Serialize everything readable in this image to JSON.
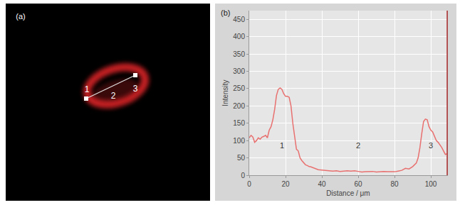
{
  "panel_a": {
    "label": "(a)",
    "markers": [
      "1",
      "2",
      "3"
    ],
    "color": "#e8262a"
  },
  "chart_data": {
    "type": "line",
    "panel_label": "(b)",
    "x_label": "Distance / μm",
    "y_label": "Intensity",
    "x": [
      0,
      1,
      2,
      3,
      4,
      5,
      6,
      7,
      8,
      9,
      10,
      11,
      12,
      13,
      14,
      15,
      16,
      17,
      18,
      19,
      20,
      21,
      22,
      23,
      24,
      25,
      26,
      27,
      28,
      29,
      30,
      31,
      32,
      33,
      34,
      35,
      36,
      37,
      38,
      40,
      42,
      44,
      46,
      48,
      50,
      52,
      54,
      56,
      58,
      60,
      62,
      64,
      66,
      68,
      70,
      72,
      74,
      76,
      78,
      80,
      82,
      84,
      86,
      88,
      90,
      92,
      93,
      94,
      95,
      96,
      97,
      98,
      99,
      100,
      101,
      102,
      103,
      104,
      105,
      106,
      107,
      108,
      109
    ],
    "series": [
      {
        "color": "#e8706f",
        "values": [
          108,
          115,
          110,
          95,
          100,
          108,
          104,
          110,
          112,
          115,
          108,
          130,
          140,
          160,
          190,
          230,
          248,
          252,
          248,
          235,
          228,
          228,
          225,
          200,
          150,
          110,
          75,
          70,
          50,
          42,
          35,
          30,
          28,
          25,
          24,
          22,
          20,
          18,
          16,
          15,
          14,
          14,
          12,
          13,
          11,
          12,
          13,
          12,
          13,
          11,
          9,
          10,
          10,
          11,
          9,
          10,
          11,
          10,
          10,
          10,
          12,
          14,
          20,
          18,
          25,
          35,
          50,
          80,
          120,
          155,
          162,
          160,
          140,
          130,
          125,
          112,
          100,
          95,
          88,
          80,
          70,
          60,
          62
        ]
      }
    ],
    "xlim": [
      0,
      109
    ],
    "xticks": [
      0,
      20,
      40,
      60,
      80,
      100
    ],
    "ylim": [
      0,
      475
    ],
    "yticks": [
      0,
      50,
      100,
      150,
      200,
      250,
      300,
      350,
      400,
      450
    ],
    "grid": true,
    "annotations": [
      {
        "text": "1",
        "x": 18,
        "y": 86
      },
      {
        "text": "2",
        "x": 60,
        "y": 86
      },
      {
        "text": "3",
        "x": 100,
        "y": 86
      }
    ]
  }
}
